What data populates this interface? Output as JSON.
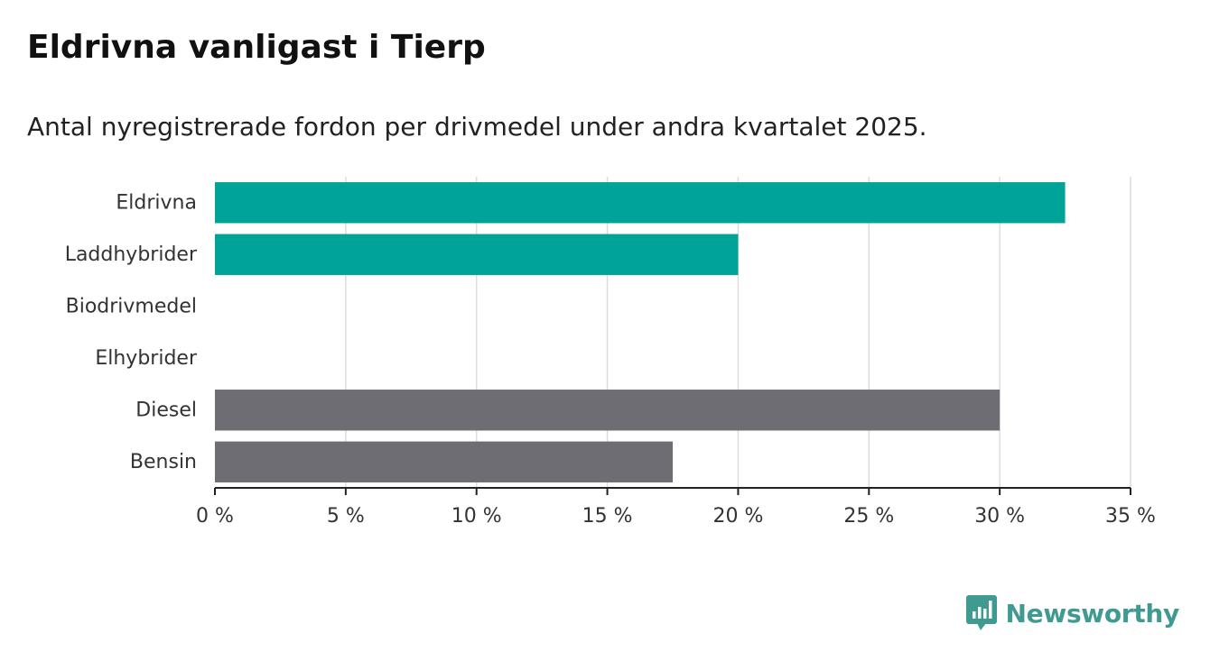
{
  "header": {
    "title": "Eldrivna vanligast i Tierp",
    "subtitle": "Antal nyregistrerade fordon per drivmedel under andra kvartalet 2025."
  },
  "brand": {
    "name": "Newsworthy",
    "icon": "bar-chart-speech-bubble-icon",
    "color": "#3f9b91"
  },
  "chart_data": {
    "type": "bar",
    "orientation": "horizontal",
    "categories": [
      "Eldrivna",
      "Laddhybrider",
      "Biodrivmedel",
      "Elhybrider",
      "Diesel",
      "Bensin"
    ],
    "values": [
      32.5,
      20,
      0,
      0,
      30,
      17.5
    ],
    "bar_colors": [
      "#00a398",
      "#00a398",
      "#00a398",
      "#00a398",
      "#6e6d73",
      "#6e6d73"
    ],
    "xlim": [
      0,
      35
    ],
    "x_ticks": [
      0,
      5,
      10,
      15,
      20,
      25,
      30,
      35
    ],
    "x_tick_labels": [
      "0 %",
      "5 %",
      "10 %",
      "15 %",
      "20 %",
      "25 %",
      "30 %",
      "35 %"
    ],
    "grid": true,
    "xlabel": "",
    "ylabel": ""
  }
}
